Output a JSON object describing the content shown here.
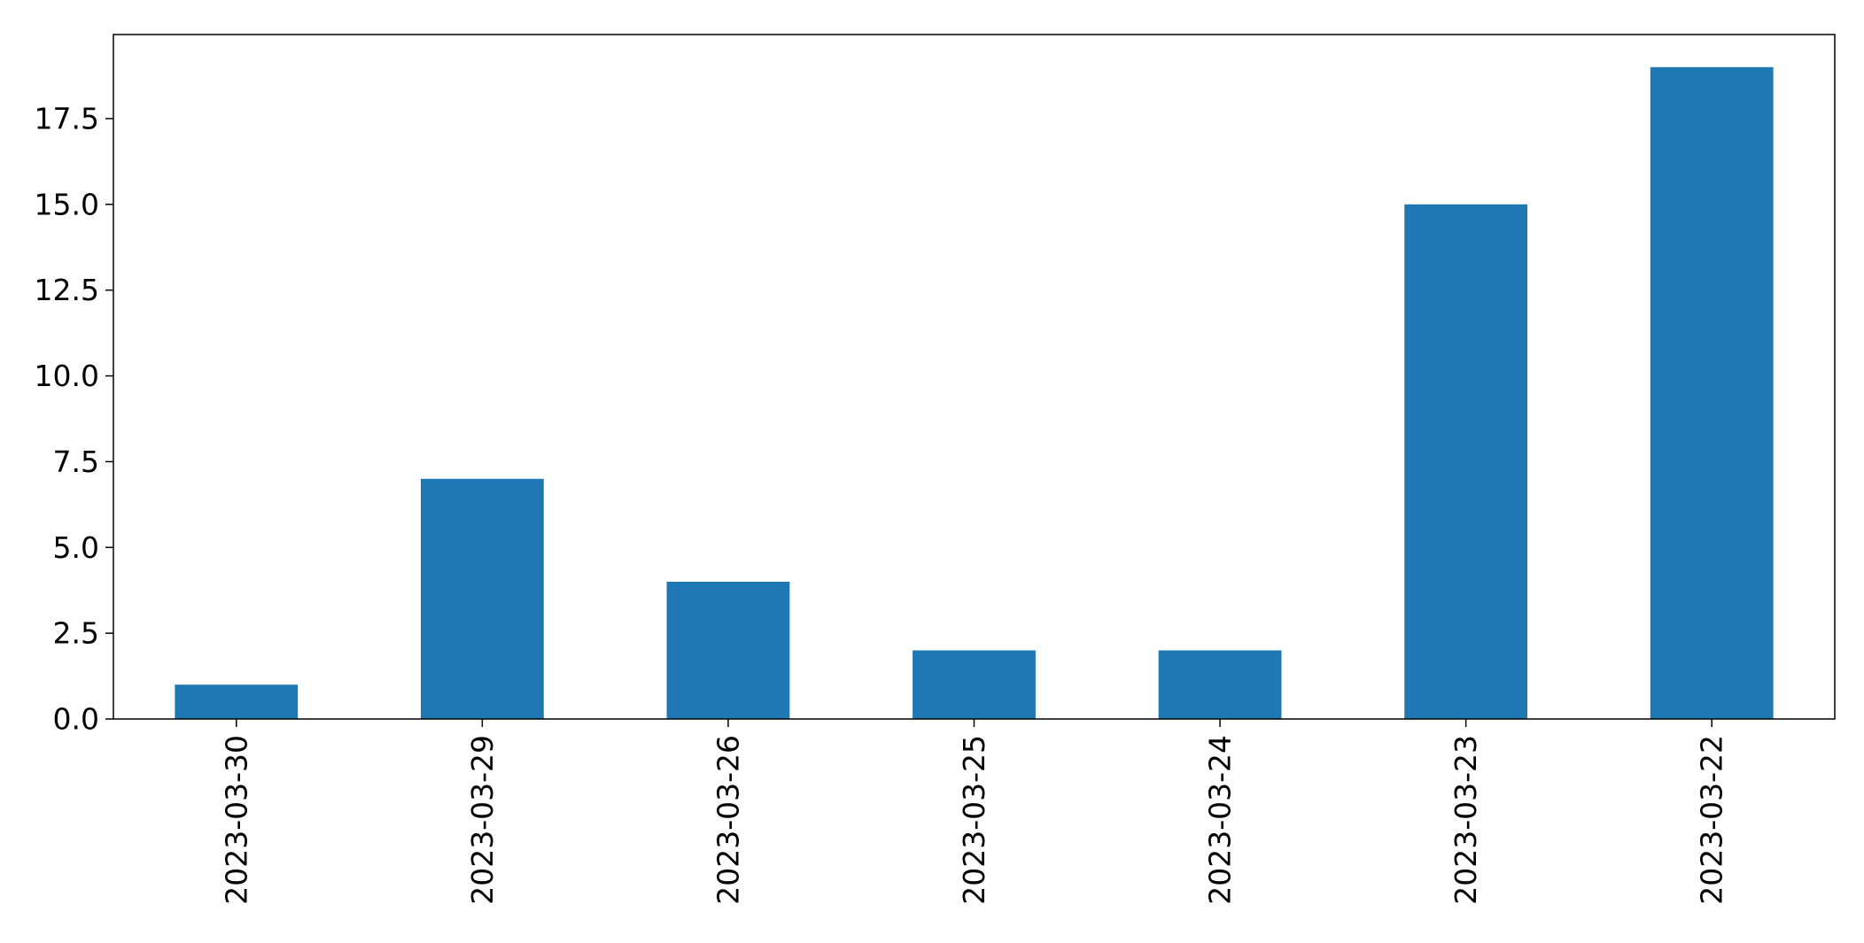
{
  "chart_data": {
    "type": "bar",
    "categories": [
      "2023-03-30",
      "2023-03-29",
      "2023-03-26",
      "2023-03-25",
      "2023-03-24",
      "2023-03-23",
      "2023-03-22"
    ],
    "values": [
      1,
      7,
      4,
      2,
      2,
      15,
      19
    ],
    "ylim": [
      0,
      19.95
    ],
    "yticks": [
      0.0,
      2.5,
      5.0,
      7.5,
      10.0,
      12.5,
      15.0,
      17.5
    ],
    "ytick_labels": [
      "0.0",
      "2.5",
      "5.0",
      "7.5",
      "10.0",
      "12.5",
      "15.0",
      "17.5"
    ],
    "xtick_rotation": "vertical",
    "title": "",
    "xlabel": "",
    "ylabel": "",
    "grid": false,
    "legend": "none",
    "bar_color": "#1f77b4"
  }
}
